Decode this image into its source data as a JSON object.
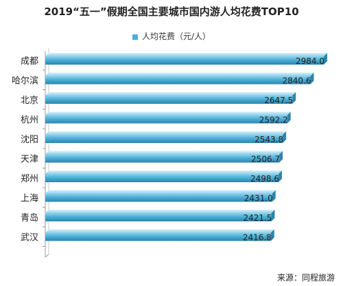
{
  "chart_data": {
    "type": "bar",
    "orientation": "horizontal",
    "title": "2019“五一”假期全国主要城市国内游人均花费TOP10",
    "legend": [
      "人均花费（元/人）"
    ],
    "legend_position": "top",
    "categories": [
      "成都",
      "哈尔滨",
      "北京",
      "杭州",
      "沈阳",
      "天津",
      "郑州",
      "上海",
      "青岛",
      "武汉"
    ],
    "series": [
      {
        "name": "人均花费（元/人）",
        "values": [
          2984.0,
          2840.6,
          2647.5,
          2592.2,
          2543.8,
          2506.7,
          2498.6,
          2431.0,
          2421.5,
          2416.8
        ]
      }
    ],
    "value_labels": [
      "2984.0",
      "2840.6",
      "2647.5",
      "2592.2",
      "2543.8",
      "2506.7",
      "2498.6",
      "2431.0",
      "2421.5",
      "2416.8"
    ],
    "xlim": [
      0,
      2984.0
    ],
    "grid": false,
    "colors": {
      "bar": "#4bafd6",
      "bar_dark": "#2e84ad",
      "bar_light": "#8fd0ea",
      "axis": "#9a9a9a"
    }
  },
  "source": "来源：同程旅游"
}
